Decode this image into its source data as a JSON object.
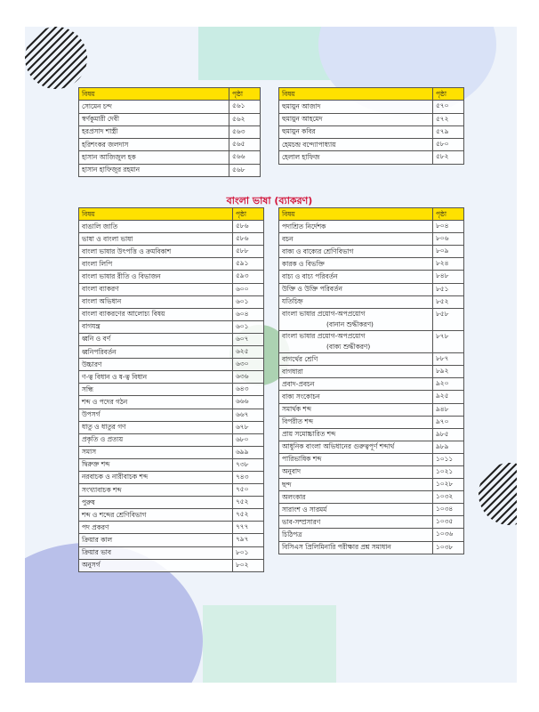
{
  "colors": {
    "header_bg": "#ffe100",
    "heading": "#d2143a"
  },
  "headers": {
    "subject": "বিষয়",
    "page": "পৃষ্ঠা"
  },
  "top_left": [
    [
      "সোমেন চন্দ",
      "৫৬১"
    ],
    [
      "স্বর্ণকুমারী দেবী",
      "৫৬২"
    ],
    [
      "হরপ্রসাদ শাস্ত্রী",
      "৫৬৩"
    ],
    [
      "হরিশংকর জলদাস",
      "৫৬৫"
    ],
    [
      "হাসান আজিজুল হক",
      "৫৬৬"
    ],
    [
      "হাসান হাফিজুর রহমান",
      "৫৬৮"
    ]
  ],
  "top_right": [
    [
      "হুমায়ুন আজাদ",
      "৫৭০"
    ],
    [
      "হুমায়ুন আহমেদ",
      "৫৭২"
    ],
    [
      "হুমায়ুন কবির",
      "৫৭৯"
    ],
    [
      "হেমচন্দ্র বন্দ্যোপাধ্যায়",
      "৫৮০"
    ],
    [
      "হেলাল হাফিজ",
      "৫৮২"
    ]
  ],
  "section_heading": "বাংলা ভাষা (ব্যাকরণ)",
  "main_left": [
    [
      "বাঙালি জাতি",
      "৫৮৬"
    ],
    [
      "ভাষা ও বাংলা ভাষা",
      "৫৮৬"
    ],
    [
      "বাংলা ভাষার উৎপত্তি ও ক্রমবিকাশ",
      "৫৮৮"
    ],
    [
      "বাংলা লিপি",
      "৫৯১"
    ],
    [
      "বাংলা ভাষার রীতি ও বিভাজন",
      "৫৯৩"
    ],
    [
      "বাংলা ব্যাকরণ",
      "৬০০"
    ],
    [
      "বাংলা অভিধান",
      "৬০১"
    ],
    [
      "বাংলা ব্যাকরণের আলোচ্য বিষয়",
      "৬০৪"
    ],
    [
      "বাগযন্ত্র",
      "৬০১"
    ],
    [
      "ধ্বনি ও বর্ণ",
      "৬০৭"
    ],
    [
      "ধ্বনিপরিবর্তন",
      "৬২৫"
    ],
    [
      "উচ্চারণ",
      "৬৩০"
    ],
    [
      "ণ-ত্ব বিধান ও ষ-ত্ব বিধান",
      "৬৩৬"
    ],
    [
      "সন্ধি",
      "৬৪৩"
    ],
    [
      "শব্দ ও পদের গঠন",
      "৬৬৬"
    ],
    [
      "উপসর্গ",
      "৬৬৭"
    ],
    [
      "ধাতু ও ধাতুর গণ",
      "৬৭৮"
    ],
    [
      "প্রকৃতি ও প্রত্যয়",
      "৬৮০"
    ],
    [
      "সমাস",
      "৬৯৯"
    ],
    [
      "দ্বিরুক্ত শব্দ",
      "৭৩৮"
    ],
    [
      "নরবাচক ও নারীবাচক শব্দ",
      "৭৪৩"
    ],
    [
      "সংখ্যাবাচক শব্দ",
      "৭৫০"
    ],
    [
      "পুরুষ",
      "৭৫২"
    ],
    [
      "শব্দ ও শব্দের শ্রেণিবিভাগ",
      "৭৫২"
    ],
    [
      "পদ প্রকরণ",
      "৭৭৭"
    ],
    [
      "ক্রিয়ার কাল",
      "৭৯৭"
    ],
    [
      "ক্রিয়ার ভাব",
      "৮০১"
    ],
    [
      "অনুসর্গ",
      "৮০২"
    ]
  ],
  "main_right": [
    [
      "পদাশ্রিত নির্দেশক",
      "৮০৪"
    ],
    [
      "বচন",
      "৮০৬"
    ],
    [
      "বাক্য ও বাক্যের শ্রেণিবিভাগ",
      "৮০৯"
    ],
    [
      "কারক ও বিভক্তি",
      "৮২৪"
    ],
    [
      "বাচ্য ও বাচ্য পরিবর্তন",
      "৮৪৮"
    ],
    [
      "উক্তি ও উক্তি পরিবর্তন",
      "৮৫১"
    ],
    [
      "যতিচিহ্ন",
      "৮৫২"
    ],
    [
      "বাংলা ভাষার প্রয়োগ-অপপ্রয়োগ",
      "৮৫৮",
      "(বানান শুদ্ধীকরণ)"
    ],
    [
      "বাংলা ভাষার প্রয়োগ-অপপ্রয়োগ",
      "৮৭৮",
      "(বাক্য শুদ্ধীকরণ)"
    ],
    [
      "বাগর্থের শ্রেণি",
      "৮৮৭"
    ],
    [
      "বাগধারা",
      "৮৯২"
    ],
    [
      "প্রবাদ-প্রবচন",
      "৯২০"
    ],
    [
      "বাক্য সংকোচন",
      "৯২৫"
    ],
    [
      "সমার্থক শব্দ",
      "৯৪৮"
    ],
    [
      "বিপরীত শব্দ",
      "৯৭০"
    ],
    [
      "প্রায় সমোচ্চারিত শব্দ",
      "৯৮৫"
    ],
    [
      "আধুনিক বাংলা অভিধানের গুরুত্বপূর্ণ শব্দার্থ",
      "৯৮৯"
    ],
    [
      "পারিভাষিক শব্দ",
      "১০১১"
    ],
    [
      "অনুবাদ",
      "১০২১"
    ],
    [
      "ছন্দ",
      "১০২৮"
    ],
    [
      "অলংকার",
      "১০৩২"
    ],
    [
      "সারাংশ ও সারমর্ম",
      "১০৩৪"
    ],
    [
      "ভাব-সম্প্রসারণ",
      "১০৩৫"
    ],
    [
      "চিঠিপত্র",
      "১০৩৬"
    ],
    [
      "বিসিএস প্রিলিমিনারি পরীক্ষার প্রশ্ন সমাধান",
      "১০৩৮"
    ]
  ]
}
